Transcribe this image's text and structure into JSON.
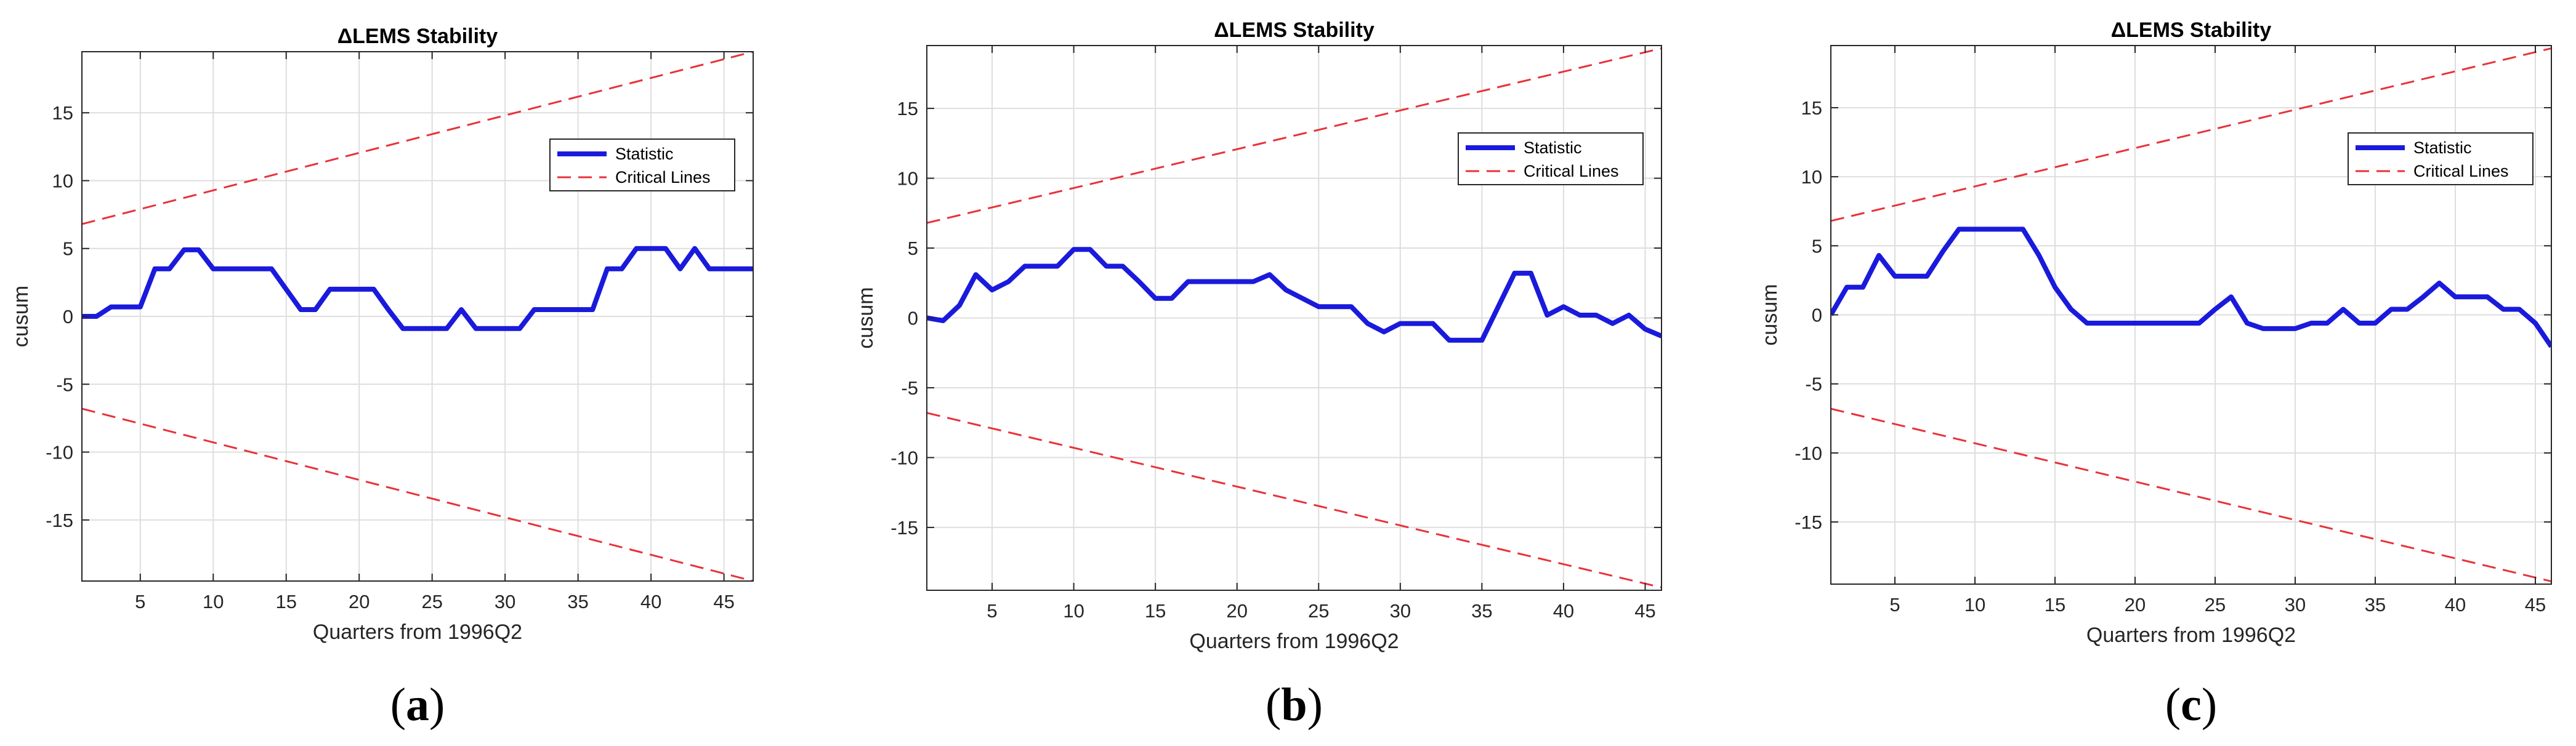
{
  "figure": {
    "panel_labels": [
      "a",
      "b",
      "c"
    ],
    "colors": {
      "statistic": "#1a1adc",
      "critical": "#e8323a",
      "grid": "#dedede",
      "axis": "#262626"
    }
  },
  "chart_data": [
    {
      "type": "line",
      "panel": "a",
      "title": "ΔLEMS Stability",
      "xlabel": "Quarters from 1996Q2",
      "ylabel": "cusum",
      "xlim": [
        1,
        47
      ],
      "ylim": [
        -19.5,
        19.5
      ],
      "xticks": [
        5,
        10,
        15,
        20,
        25,
        30,
        35,
        40,
        45
      ],
      "yticks": [
        -15,
        -10,
        -5,
        0,
        5,
        10,
        15
      ],
      "grid": true,
      "legend_position": "top-right",
      "series": [
        {
          "name": "Statistic",
          "style": "solid",
          "x": [
            1,
            2,
            3,
            4,
            5,
            6,
            7,
            8,
            9,
            10,
            11,
            12,
            13,
            14,
            15,
            16,
            17,
            18,
            19,
            20,
            21,
            22,
            23,
            24,
            25,
            26,
            27,
            28,
            29,
            30,
            31,
            32,
            33,
            34,
            35,
            36,
            37,
            38,
            39,
            40,
            41,
            42,
            43,
            44,
            45,
            46,
            47
          ],
          "y": [
            0,
            0,
            0.7,
            0.7,
            0.7,
            3.5,
            3.5,
            4.9,
            4.9,
            3.5,
            3.5,
            3.5,
            3.5,
            3.5,
            2.0,
            0.5,
            0.5,
            2.0,
            2.0,
            2.0,
            2.0,
            0.5,
            -0.9,
            -0.9,
            -0.9,
            -0.9,
            0.5,
            -0.9,
            -0.9,
            -0.9,
            -0.9,
            0.5,
            0.5,
            0.5,
            0.5,
            0.5,
            3.5,
            3.5,
            5.0,
            5.0,
            5.0,
            3.5,
            5.0,
            3.5,
            3.5,
            3.5,
            3.5
          ]
        },
        {
          "name": "Critical Lines",
          "style": "dashed",
          "upper": {
            "x": [
              1,
              47
            ],
            "y": [
              6.8,
              19.5
            ]
          },
          "lower": {
            "x": [
              1,
              47
            ],
            "y": [
              -6.8,
              -19.5
            ]
          }
        }
      ]
    },
    {
      "type": "line",
      "panel": "b",
      "title": "ΔLEMS Stability",
      "xlabel": "Quarters from 1996Q2",
      "ylabel": "cusum",
      "xlim": [
        1,
        46
      ],
      "ylim": [
        -19.5,
        19.5
      ],
      "xticks": [
        5,
        10,
        15,
        20,
        25,
        30,
        35,
        40,
        45
      ],
      "yticks": [
        -15,
        -10,
        -5,
        0,
        5,
        10,
        15
      ],
      "grid": true,
      "legend_position": "top-right",
      "series": [
        {
          "name": "Statistic",
          "style": "solid",
          "x": [
            1,
            2,
            3,
            4,
            5,
            6,
            7,
            8,
            9,
            10,
            11,
            12,
            13,
            14,
            15,
            16,
            17,
            18,
            19,
            20,
            21,
            22,
            23,
            24,
            25,
            26,
            27,
            28,
            29,
            30,
            31,
            32,
            33,
            34,
            35,
            36,
            37,
            38,
            39,
            40,
            41,
            42,
            43,
            44,
            45,
            46
          ],
          "y": [
            0,
            -0.2,
            0.9,
            3.1,
            2.0,
            2.6,
            3.7,
            3.7,
            3.7,
            4.9,
            4.9,
            3.7,
            3.7,
            2.6,
            1.4,
            1.4,
            2.6,
            2.6,
            2.6,
            2.6,
            2.6,
            3.1,
            2.0,
            1.4,
            0.8,
            0.8,
            0.8,
            -0.4,
            -1.0,
            -0.4,
            -0.4,
            -0.4,
            -1.6,
            -1.6,
            -1.6,
            0.8,
            3.2,
            3.2,
            0.2,
            0.8,
            0.2,
            0.2,
            -0.4,
            0.2,
            -0.8,
            -1.3
          ]
        },
        {
          "name": "Critical Lines",
          "style": "dashed",
          "upper": {
            "x": [
              1,
              46
            ],
            "y": [
              6.8,
              19.3
            ]
          },
          "lower": {
            "x": [
              1,
              46
            ],
            "y": [
              -6.8,
              -19.3
            ]
          }
        }
      ]
    },
    {
      "type": "line",
      "panel": "c",
      "title": "ΔLEMS Stability",
      "xlabel": "Quarters from 1996Q2",
      "ylabel": "cusum",
      "xlim": [
        1,
        46
      ],
      "ylim": [
        -19.5,
        19.5
      ],
      "xticks": [
        5,
        10,
        15,
        20,
        25,
        30,
        35,
        40,
        45
      ],
      "yticks": [
        -15,
        -10,
        -5,
        0,
        5,
        10,
        15
      ],
      "grid": true,
      "legend_position": "top-right",
      "series": [
        {
          "name": "Statistic",
          "style": "solid",
          "x": [
            1,
            2,
            3,
            4,
            5,
            6,
            7,
            8,
            9,
            10,
            11,
            12,
            13,
            14,
            15,
            16,
            17,
            18,
            19,
            20,
            21,
            22,
            23,
            24,
            25,
            26,
            27,
            28,
            29,
            30,
            31,
            32,
            33,
            34,
            35,
            36,
            37,
            38,
            39,
            40,
            41,
            42,
            43,
            44,
            45,
            46
          ],
          "y": [
            0,
            2.0,
            2.0,
            4.3,
            2.8,
            2.8,
            2.8,
            4.6,
            6.2,
            6.2,
            6.2,
            6.2,
            6.2,
            4.3,
            2.0,
            0.4,
            -0.6,
            -0.6,
            -0.6,
            -0.6,
            -0.6,
            -0.6,
            -0.6,
            -0.6,
            0.4,
            1.3,
            -0.6,
            -1.0,
            -1.0,
            -1.0,
            -0.6,
            -0.6,
            0.4,
            -0.6,
            -0.6,
            0.4,
            0.4,
            1.3,
            2.3,
            1.3,
            1.3,
            1.3,
            0.4,
            0.4,
            -0.6,
            -2.3
          ]
        },
        {
          "name": "Critical Lines",
          "style": "dashed",
          "upper": {
            "x": [
              1,
              46
            ],
            "y": [
              6.8,
              19.3
            ]
          },
          "lower": {
            "x": [
              1,
              46
            ],
            "y": [
              -6.8,
              -19.3
            ]
          }
        }
      ]
    }
  ]
}
